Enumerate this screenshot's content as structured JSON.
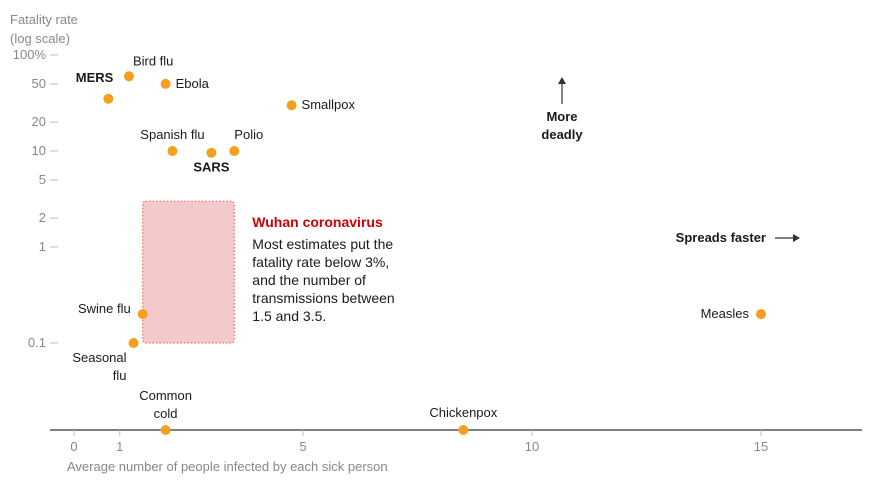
{
  "chart_data": {
    "type": "scatter",
    "y_axis_title_lines": [
      "Fatality rate",
      "(log scale)"
    ],
    "xlabel": "Average number of people infected by each sick person",
    "y_scale": "log",
    "ylim": [
      0.1,
      100
    ],
    "xlim": [
      0,
      17
    ],
    "x_ticks": [
      {
        "value": 0,
        "label": "0"
      },
      {
        "value": 1,
        "label": "1"
      },
      {
        "value": 5,
        "label": "5"
      },
      {
        "value": 10,
        "label": "10"
      },
      {
        "value": 15,
        "label": "15"
      }
    ],
    "y_ticks": [
      {
        "value": 100,
        "label": "100%"
      },
      {
        "value": 50,
        "label": "50"
      },
      {
        "value": 20,
        "label": "20"
      },
      {
        "value": 10,
        "label": "10"
      },
      {
        "value": 5,
        "label": "5"
      },
      {
        "value": 2,
        "label": "2"
      },
      {
        "value": 1,
        "label": "1"
      },
      {
        "value": 0.1,
        "label": "0.1"
      }
    ],
    "points": [
      {
        "name": "Bird flu",
        "lines": [
          "Bird flu"
        ],
        "x": 1.2,
        "y": 60,
        "bold": false,
        "anchor": "start",
        "ldx": 4,
        "ldy": -11
      },
      {
        "name": "MERS",
        "lines": [
          "MERS"
        ],
        "x": 0.75,
        "y": 35,
        "bold": true,
        "anchor": "end",
        "ldx": 5,
        "ldy": -17
      },
      {
        "name": "Ebola",
        "lines": [
          "Ebola"
        ],
        "x": 2.0,
        "y": 50,
        "bold": false,
        "anchor": "start",
        "ldx": 10,
        "ldy": 4
      },
      {
        "name": "Smallpox",
        "lines": [
          "Smallpox"
        ],
        "x": 4.75,
        "y": 30,
        "bold": false,
        "anchor": "start",
        "ldx": 10,
        "ldy": 4
      },
      {
        "name": "Spanish flu",
        "lines": [
          "Spanish flu"
        ],
        "x": 2.15,
        "y": 10,
        "bold": false,
        "anchor": "middle",
        "ldx": 0,
        "ldy": -12
      },
      {
        "name": "SARS",
        "lines": [
          "SARS"
        ],
        "x": 3.0,
        "y": 9.6,
        "bold": true,
        "anchor": "middle",
        "ldx": 0,
        "ldy": 19
      },
      {
        "name": "Polio",
        "lines": [
          "Polio"
        ],
        "x": 3.5,
        "y": 10,
        "bold": false,
        "anchor": "start",
        "ldx": 0,
        "ldy": -12
      },
      {
        "name": "Swine flu",
        "lines": [
          "Swine flu"
        ],
        "x": 1.5,
        "y": 0.2,
        "bold": false,
        "anchor": "end",
        "ldx": -12,
        "ldy": -1
      },
      {
        "name": "Seasonal flu",
        "lines": [
          "Seasonal",
          "flu"
        ],
        "x": 1.3,
        "y": 0.1,
        "bold": false,
        "anchor": "end",
        "ldx": -7,
        "ldy": 19
      },
      {
        "name": "Common cold",
        "lines": [
          "Common",
          "cold"
        ],
        "x": 2.0,
        "y": null,
        "bold": false,
        "anchor": "middle",
        "ldx": 0,
        "ldy": -30
      },
      {
        "name": "Chickenpox",
        "lines": [
          "Chickenpox"
        ],
        "x": 8.5,
        "y": null,
        "bold": false,
        "anchor": "middle",
        "ldx": 0,
        "ldy": -13
      },
      {
        "name": "Measles",
        "lines": [
          "Measles"
        ],
        "x": 15.0,
        "y": 0.2,
        "bold": false,
        "anchor": "end",
        "ldx": -12,
        "ldy": 4
      }
    ],
    "highlight_region": {
      "x_range": [
        1.5,
        3.5
      ],
      "y_range": [
        0.1,
        3
      ],
      "title": "Wuhan coronavirus",
      "body_lines": [
        "Most estimates put the",
        "fatality rate below 3%,",
        "and the number of",
        "transmissions between",
        "1.5 and 3.5."
      ]
    },
    "annotations": {
      "more_deadly_lines": [
        "More",
        "deadly"
      ],
      "spreads_faster": "Spreads faster"
    },
    "colors": {
      "point": "#f5a01d",
      "highlight_fill": "#f4c7c9",
      "highlight_border": "#e86a5c",
      "accent_red": "#cc0000",
      "axis": "#333333",
      "grid_tick": "#bbbbbb"
    }
  }
}
